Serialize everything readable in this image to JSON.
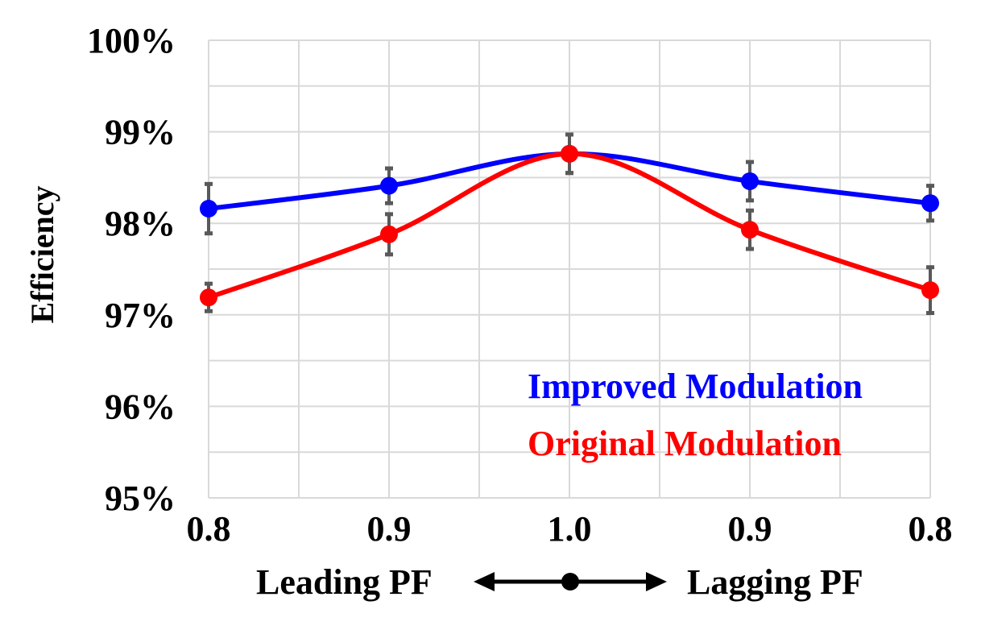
{
  "chart_data": {
    "type": "line",
    "title": "",
    "ylabel": "Efficiency",
    "xlabel_left": "Leading PF",
    "xlabel_right": "Lagging PF",
    "categories": [
      "0.8",
      "0.9",
      "1.0",
      "0.9",
      "0.8"
    ],
    "ylim": [
      95,
      100
    ],
    "yticks": [
      "95%",
      "96%",
      "97%",
      "98%",
      "99%",
      "100%"
    ],
    "ytick_values": [
      95,
      96,
      97,
      98,
      99,
      100
    ],
    "grid": true,
    "legend_placement": "bottom-right",
    "series": [
      {
        "name": "Improved Modulation",
        "color": "#0000ff",
        "values": [
          98.16,
          98.41,
          98.76,
          98.46,
          98.22
        ],
        "errors": [
          0.27,
          0.19,
          0.21,
          0.21,
          0.19
        ]
      },
      {
        "name": "Original Modulation",
        "color": "#ff0000",
        "values": [
          97.19,
          97.88,
          98.76,
          97.93,
          97.27
        ],
        "errors": [
          0.15,
          0.22,
          0.21,
          0.21,
          0.25
        ]
      }
    ],
    "error_bar_color": "#595959"
  }
}
